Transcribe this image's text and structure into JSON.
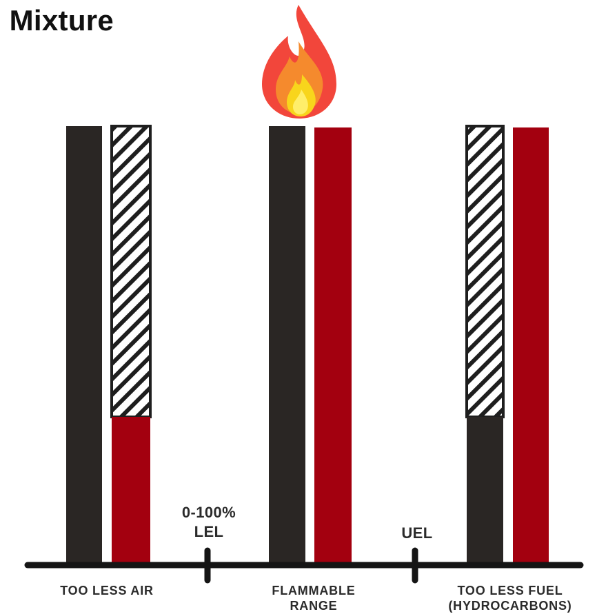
{
  "title": "e Mixture",
  "colors": {
    "dark": "#2a2624",
    "red": "#a3000f",
    "axis": "#151515",
    "outline": "#1e1e1e"
  },
  "icons": [
    "flame-icon"
  ],
  "zones": [
    {
      "label": "TOO LESS AIR",
      "lines": [
        "TOO LESS AIR"
      ]
    },
    {
      "label": "FLAMMABLE RANGE",
      "lines": [
        "FLAMMABLE",
        "RANGE"
      ]
    },
    {
      "label": "TOO LESS FUEL (HYDROCARBONS)",
      "lines": [
        "TOO LESS FUEL",
        "(HYDROCARBONS)"
      ]
    }
  ],
  "markers": [
    {
      "lines": [
        "0-100%",
        "LEL"
      ]
    },
    {
      "lines": [
        "UEL"
      ]
    }
  ]
}
